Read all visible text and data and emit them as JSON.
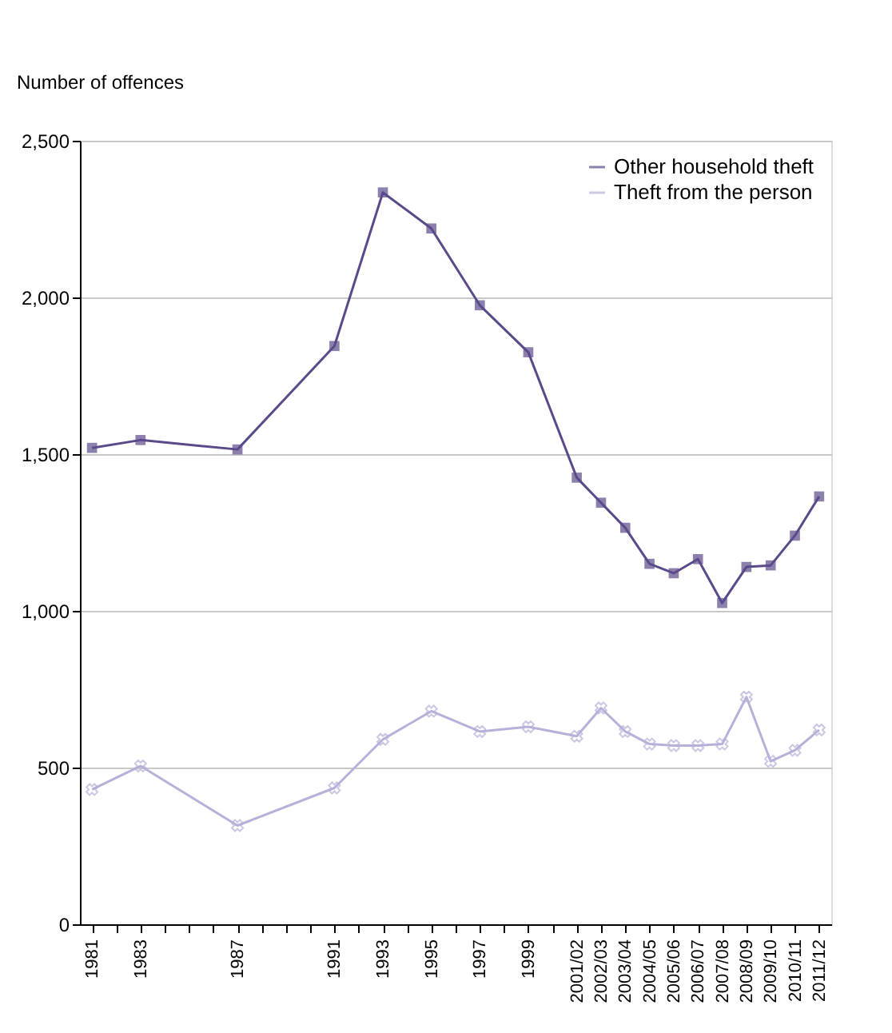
{
  "chart_data": {
    "type": "line",
    "ylabel": "Number of offences",
    "x": [
      1981,
      1983,
      1987,
      1991,
      1993,
      1995,
      1997,
      1999,
      2001,
      2002,
      2003,
      2004,
      2005,
      2006,
      2007,
      2008,
      2009,
      2010,
      2011
    ],
    "series": [
      {
        "name": "Other household theft",
        "color": "#5b4a8a",
        "marker": "square",
        "values": [
          1520,
          1545,
          1515,
          1845,
          2335,
          2220,
          1975,
          1825,
          1425,
          1345,
          1265,
          1150,
          1120,
          1165,
          1025,
          1140,
          1145,
          1240,
          1365
        ]
      },
      {
        "name": "Theft from the person",
        "color": "#b8b0d8",
        "marker": "cross",
        "values": [
          430,
          505,
          315,
          435,
          590,
          680,
          615,
          630,
          600,
          690,
          615,
          575,
          570,
          570,
          575,
          725,
          520,
          555,
          620
        ]
      }
    ],
    "xlim": [
      1980.5,
      2011.5
    ],
    "xticks": [
      1981,
      {
        "value": 1982,
        "label": null
      },
      1983,
      {
        "value": 1984,
        "label": null
      },
      {
        "value": 1985,
        "label": null
      },
      {
        "value": 1986,
        "label": null
      },
      1987,
      {
        "value": 1988,
        "label": null
      },
      {
        "value": 1989,
        "label": null
      },
      {
        "value": 1990,
        "label": null
      },
      1991,
      {
        "value": 1992,
        "label": null
      },
      1993,
      {
        "value": 1994,
        "label": null
      },
      1995,
      {
        "value": 1996,
        "label": null
      },
      1997,
      {
        "value": 1998,
        "label": null
      },
      1999,
      {
        "value": 2000,
        "label": null
      },
      {
        "value": 2001,
        "label": "2001/02"
      },
      {
        "value": 2002,
        "label": "2002/03"
      },
      {
        "value": 2003,
        "label": "2003/04"
      },
      {
        "value": 2004,
        "label": "2004/05"
      },
      {
        "value": 2005,
        "label": "2005/06"
      },
      {
        "value": 2006,
        "label": "2006/07"
      },
      {
        "value": 2007,
        "label": "2007/08"
      },
      {
        "value": 2008,
        "label": "2008/09"
      },
      {
        "value": 2009,
        "label": "2009/10"
      },
      {
        "value": 2010,
        "label": "2010/11"
      },
      {
        "value": 2011,
        "label": "2011/12"
      }
    ],
    "ylim": [
      0,
      2500
    ],
    "yticks": [
      0,
      500,
      {
        "value": 1000,
        "label": "1,000"
      },
      {
        "value": 1500,
        "label": "1,500"
      },
      {
        "value": 2000,
        "label": "2,000"
      },
      {
        "value": 2500,
        "label": "2,500"
      }
    ],
    "grid": "y",
    "legend": "top right"
  }
}
